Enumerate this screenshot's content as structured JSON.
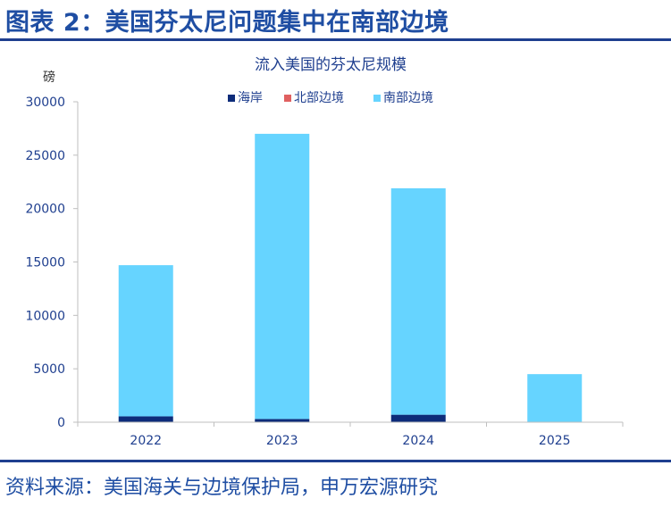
{
  "header": {
    "title": "图表 2：美国芬太尼问题集中在南部边境"
  },
  "footer": {
    "source": "资料来源：美国海关与边境保护局，申万宏源研究"
  },
  "chart_data": {
    "type": "bar",
    "stacked": true,
    "title": "流入美国的芬太尼规模",
    "ylabel": "磅",
    "xlabel": "",
    "categories": [
      "2022",
      "2023",
      "2024",
      "2025"
    ],
    "series": [
      {
        "name": "海岸",
        "color": "#0d2c7a",
        "values": [
          550,
          300,
          700,
          0
        ]
      },
      {
        "name": "北部边境",
        "color": "#e06060",
        "values": [
          0,
          0,
          0,
          0
        ]
      },
      {
        "name": "南部边境",
        "color": "#66d4ff",
        "values": [
          14150,
          26700,
          21200,
          4500
        ]
      }
    ],
    "ylim": [
      0,
      30000
    ],
    "yticks": [
      "0",
      "5000",
      "10000",
      "15000",
      "20000",
      "25000",
      "30000"
    ],
    "grid": false,
    "legend": "top"
  }
}
